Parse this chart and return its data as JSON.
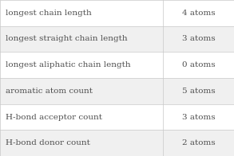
{
  "rows": [
    [
      "longest chain length",
      "4 atoms"
    ],
    [
      "longest straight chain length",
      "3 atoms"
    ],
    [
      "longest aliphatic chain length",
      "0 atoms"
    ],
    [
      "aromatic atom count",
      "5 atoms"
    ],
    [
      "H-bond acceptor count",
      "3 atoms"
    ],
    [
      "H-bond donor count",
      "2 atoms"
    ]
  ],
  "col_split": 0.695,
  "background_color": "#ffffff",
  "border_color": "#c8c8c8",
  "text_color": "#505050",
  "font_size": 7.5,
  "row_colors": [
    "#ffffff",
    "#f0f0f0",
    "#ffffff",
    "#f0f0f0",
    "#ffffff",
    "#f0f0f0"
  ]
}
